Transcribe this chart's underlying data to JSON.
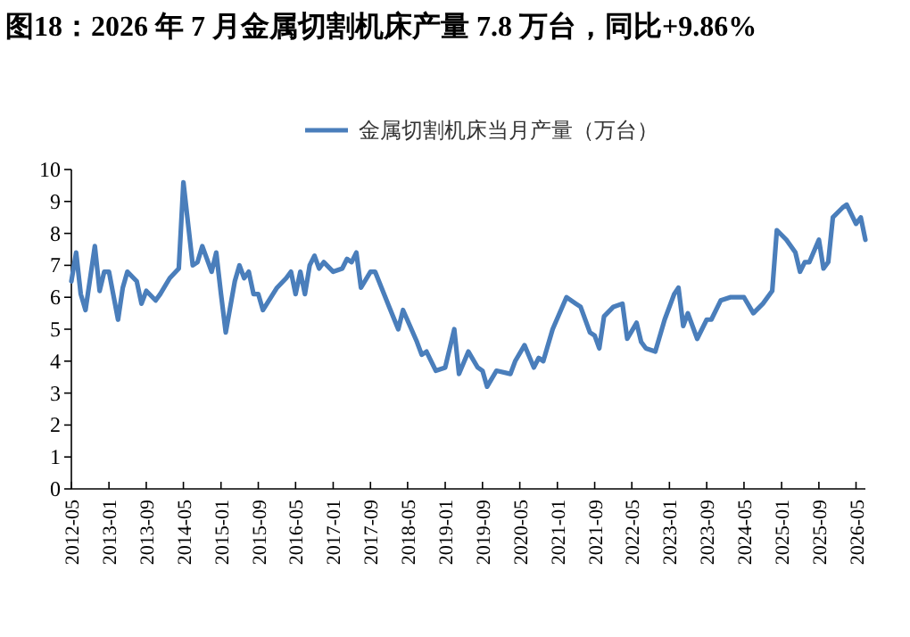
{
  "chart_data": {
    "type": "line",
    "title": "图18：2026 年 7 月金属切割机床产量 7.8 万台，同比+9.86%",
    "x": [
      "2012-05",
      "2012-06",
      "2012-07",
      "2012-08",
      "2012-10",
      "2012-11",
      "2012-12",
      "2013-01",
      "2013-03",
      "2013-04",
      "2013-05",
      "2013-07",
      "2013-08",
      "2013-09",
      "2013-11",
      "2013-12",
      "2014-02",
      "2014-04",
      "2014-05",
      "2014-07",
      "2014-08",
      "2014-09",
      "2014-11",
      "2014-12",
      "2015-01",
      "2015-02",
      "2015-04",
      "2015-05",
      "2015-06",
      "2015-07",
      "2015-08",
      "2015-09",
      "2015-10",
      "2016-01",
      "2016-03",
      "2016-04",
      "2016-05",
      "2016-06",
      "2016-07",
      "2016-08",
      "2016-09",
      "2016-10",
      "2016-11",
      "2017-01",
      "2017-03",
      "2017-04",
      "2017-05",
      "2017-06",
      "2017-07",
      "2017-09",
      "2017-10",
      "2018-01",
      "2018-03",
      "2018-04",
      "2018-07",
      "2018-08",
      "2018-09",
      "2018-11",
      "2019-01",
      "2019-03",
      "2019-04",
      "2019-06",
      "2019-08",
      "2019-09",
      "2019-10",
      "2019-12",
      "2020-03",
      "2020-04",
      "2020-06",
      "2020-08",
      "2020-09",
      "2020-10",
      "2020-12",
      "2021-03",
      "2021-05",
      "2021-06",
      "2021-08",
      "2021-09",
      "2021-10",
      "2021-11",
      "2022-01",
      "2022-03",
      "2022-04",
      "2022-06",
      "2022-07",
      "2022-08",
      "2022-10",
      "2022-12",
      "2023-02",
      "2023-03",
      "2023-04",
      "2023-05",
      "2023-07",
      "2023-09",
      "2023-10",
      "2023-12",
      "2024-02",
      "2024-05",
      "2024-07",
      "2024-09",
      "2024-11",
      "2024-12",
      "2025-02",
      "2025-04",
      "2025-05",
      "2025-06",
      "2025-07",
      "2025-09",
      "2025-10",
      "2025-11",
      "2025-12",
      "2026-02",
      "2026-03",
      "2026-05",
      "2026-06",
      "2026-07"
    ],
    "series": [
      {
        "name": "金属切割机床当月产量（万台）",
        "color": "#4a7ebb",
        "values": [
          6.5,
          7.4,
          6.1,
          5.6,
          7.6,
          6.2,
          6.8,
          6.8,
          5.3,
          6.3,
          6.8,
          6.5,
          5.8,
          6.2,
          5.9,
          6.1,
          6.6,
          6.9,
          9.6,
          7.0,
          7.1,
          7.6,
          6.8,
          7.4,
          6.1,
          4.9,
          6.5,
          7.0,
          6.6,
          6.8,
          6.1,
          6.1,
          5.6,
          6.3,
          6.6,
          6.8,
          6.1,
          6.8,
          6.1,
          7.0,
          7.3,
          6.9,
          7.1,
          6.8,
          6.9,
          7.2,
          7.1,
          7.4,
          6.3,
          6.8,
          6.8,
          5.7,
          5.0,
          5.6,
          4.6,
          4.2,
          4.3,
          3.7,
          3.8,
          5.0,
          3.6,
          4.3,
          3.8,
          3.7,
          3.2,
          3.7,
          3.6,
          4.0,
          4.5,
          3.8,
          4.1,
          4.0,
          5.0,
          6.0,
          5.8,
          5.7,
          4.9,
          4.8,
          4.4,
          5.4,
          5.7,
          5.8,
          4.7,
          5.2,
          4.6,
          4.4,
          4.3,
          5.3,
          6.1,
          6.3,
          5.1,
          5.5,
          4.7,
          5.3,
          5.3,
          5.9,
          6.0,
          6.0,
          5.5,
          5.8,
          6.2,
          8.1,
          7.8,
          7.4,
          6.8,
          7.1,
          7.1,
          7.8,
          6.9,
          7.1,
          8.5,
          8.8,
          8.9,
          8.3,
          8.5,
          7.8
        ]
      }
    ],
    "xlim": [
      "2012-05",
      "2026-07"
    ],
    "xticks": [
      "2012-05",
      "2013-01",
      "2013-09",
      "2014-05",
      "2015-01",
      "2015-09",
      "2016-05",
      "2017-01",
      "2017-09",
      "2018-05",
      "2019-01",
      "2019-09",
      "2020-05",
      "2021-01",
      "2021-09",
      "2022-05",
      "2023-01",
      "2023-09",
      "2024-05",
      "2025-01",
      "2025-09",
      "2026-05"
    ],
    "ylim": [
      0,
      10
    ],
    "yticks": [
      0,
      1,
      2,
      3,
      4,
      5,
      6,
      7,
      8,
      9,
      10
    ],
    "legend": "top"
  }
}
